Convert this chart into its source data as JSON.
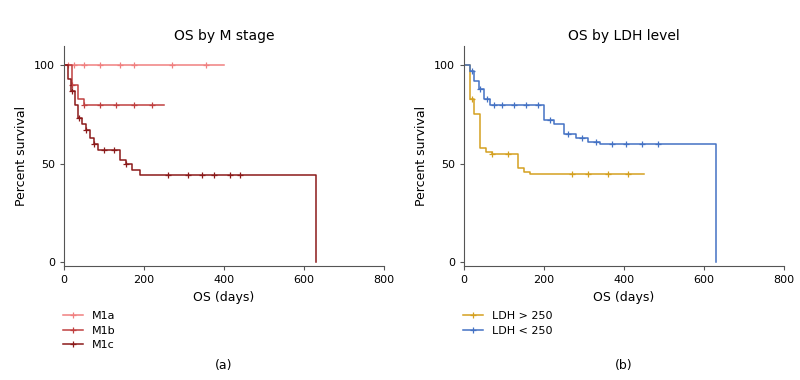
{
  "title_a": "OS by M stage",
  "title_b": "OS by LDH level",
  "xlabel": "OS (days)",
  "ylabel": "Percent survival",
  "label_a": "(a)",
  "label_b": "(b)",
  "xlim": [
    0,
    800
  ],
  "ylim": [
    -2,
    110
  ],
  "yticks": [
    0,
    50,
    100
  ],
  "xticks": [
    0,
    200,
    400,
    600,
    800
  ],
  "M1a_color": "#f08080",
  "M1b_color": "#c04040",
  "M1c_color": "#8b1a1a",
  "LDH_high_color": "#d4a020",
  "LDH_low_color": "#4472c4",
  "M1a_steps": [
    [
      0,
      100
    ],
    [
      10,
      100
    ],
    [
      25,
      100
    ],
    [
      50,
      100
    ],
    [
      70,
      100
    ],
    [
      90,
      100
    ],
    [
      110,
      100
    ],
    [
      140,
      100
    ],
    [
      175,
      100
    ],
    [
      200,
      100
    ],
    [
      250,
      100
    ],
    [
      300,
      100
    ],
    [
      350,
      100
    ],
    [
      400,
      100
    ]
  ],
  "M1a_censors": [
    10,
    25,
    50,
    90,
    140,
    175,
    270,
    355
  ],
  "M1a_final_x": 400,
  "M1b_steps": [
    [
      0,
      100
    ],
    [
      20,
      90
    ],
    [
      35,
      83
    ],
    [
      50,
      80
    ],
    [
      70,
      80
    ],
    [
      90,
      80
    ],
    [
      110,
      80
    ],
    [
      130,
      80
    ],
    [
      150,
      80
    ],
    [
      175,
      80
    ],
    [
      200,
      80
    ],
    [
      220,
      80
    ],
    [
      250,
      80
    ]
  ],
  "M1b_censors": [
    20,
    50,
    90,
    130,
    175,
    220
  ],
  "M1b_final_x": 250,
  "M1c_steps": [
    [
      0,
      100
    ],
    [
      10,
      93
    ],
    [
      18,
      87
    ],
    [
      27,
      80
    ],
    [
      36,
      73
    ],
    [
      45,
      70
    ],
    [
      54,
      67
    ],
    [
      64,
      63
    ],
    [
      74,
      60
    ],
    [
      85,
      57
    ],
    [
      95,
      57
    ],
    [
      110,
      57
    ],
    [
      125,
      57
    ],
    [
      140,
      52
    ],
    [
      155,
      50
    ],
    [
      170,
      47
    ],
    [
      190,
      44
    ],
    [
      625,
      44
    ],
    [
      630,
      0
    ]
  ],
  "M1c_censors": [
    20,
    38,
    56,
    75,
    100,
    125,
    155,
    260,
    310,
    345,
    375,
    415,
    440
  ],
  "M1c_final_x": 630,
  "LDH_high_steps": [
    [
      0,
      100
    ],
    [
      15,
      83
    ],
    [
      25,
      75
    ],
    [
      40,
      58
    ],
    [
      55,
      56
    ],
    [
      70,
      55
    ],
    [
      90,
      55
    ],
    [
      115,
      55
    ],
    [
      135,
      48
    ],
    [
      150,
      46
    ],
    [
      165,
      45
    ],
    [
      450,
      45
    ]
  ],
  "LDH_high_censors": [
    20,
    70,
    110,
    270,
    310,
    360,
    410
  ],
  "LDH_high_final_x": 450,
  "LDH_low_steps": [
    [
      0,
      100
    ],
    [
      15,
      97
    ],
    [
      25,
      92
    ],
    [
      38,
      88
    ],
    [
      50,
      83
    ],
    [
      65,
      80
    ],
    [
      80,
      80
    ],
    [
      100,
      80
    ],
    [
      120,
      80
    ],
    [
      140,
      80
    ],
    [
      170,
      80
    ],
    [
      200,
      72
    ],
    [
      225,
      70
    ],
    [
      250,
      65
    ],
    [
      280,
      63
    ],
    [
      310,
      61
    ],
    [
      340,
      60
    ],
    [
      370,
      60
    ],
    [
      400,
      60
    ],
    [
      440,
      60
    ],
    [
      480,
      60
    ],
    [
      520,
      60
    ],
    [
      560,
      60
    ],
    [
      600,
      60
    ],
    [
      625,
      60
    ],
    [
      630,
      0
    ]
  ],
  "LDH_low_censors": [
    20,
    40,
    58,
    75,
    95,
    125,
    155,
    185,
    215,
    260,
    295,
    330,
    370,
    405,
    445,
    485
  ],
  "LDH_low_final_x": 630
}
